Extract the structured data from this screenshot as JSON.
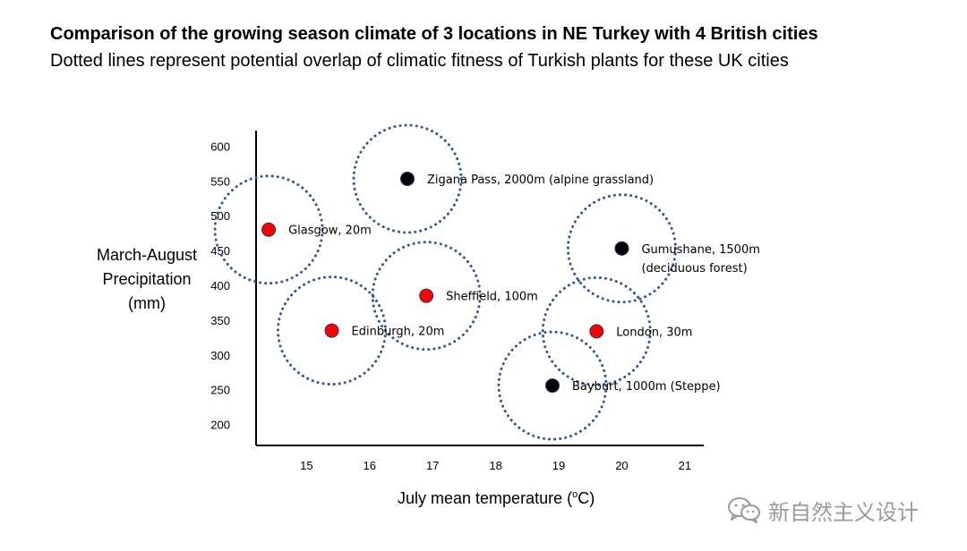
{
  "title": "Comparison of the growing season climate of 3 locations in NE Turkey with 4 British cities",
  "subtitle": "Dotted lines represent  potential overlap of  climatic fitness of Turkish plants for these UK cities",
  "ylabel_lines": [
    "March-August",
    "Precipitation",
    "(mm)"
  ],
  "xlabel_main": "July mean temperature (",
  "xlabel_sup": "o",
  "xlabel_tail": "C)",
  "watermark_text": "新自然主义设计",
  "colors": {
    "british": "#ff0000",
    "turkish": "#000000",
    "circle": "#2f5597",
    "axis": "#000000"
  },
  "chart_data": {
    "type": "scatter",
    "xlabel": "July mean temperature (oC)",
    "ylabel": "March-August Precipitation (mm)",
    "x_ticks": [
      15,
      16,
      17,
      18,
      19,
      20,
      21
    ],
    "y_ticks": [
      200,
      250,
      300,
      350,
      400,
      450,
      500,
      550,
      600
    ],
    "xlim": [
      14.2,
      21.3
    ],
    "ylim": [
      170,
      630
    ],
    "grid": false,
    "points": [
      {
        "label": "Zigana Pass, 2000m (alpine grassland)",
        "label_lines": [
          "Zigana Pass, 2000m (alpine grassland)"
        ],
        "x": 16.6,
        "y": 553,
        "group": "turkish"
      },
      {
        "label": "Glasgow, 20m",
        "label_lines": [
          "Glasgow, 20m"
        ],
        "x": 14.4,
        "y": 480,
        "group": "british"
      },
      {
        "label": "Gumushane, 1500m (deciduous forest)",
        "label_lines": [
          "Gumushane, 1500m",
          "(deciduous forest)"
        ],
        "x": 20.0,
        "y": 453,
        "group": "turkish"
      },
      {
        "label": "Sheffield, 100m",
        "label_lines": [
          "Sheffield, 100m"
        ],
        "x": 16.9,
        "y": 385,
        "group": "british"
      },
      {
        "label": "Edinburgh, 20m",
        "label_lines": [
          "Edinburgh, 20m"
        ],
        "x": 15.4,
        "y": 335,
        "group": "british"
      },
      {
        "label": "London, 30m",
        "label_lines": [
          "London, 30m"
        ],
        "x": 19.6,
        "y": 334,
        "group": "british"
      },
      {
        "label": "Bayburt, 1000m (Steppe)",
        "label_lines": [
          "Bayburt, 1000m (Steppe)"
        ],
        "x": 18.9,
        "y": 256,
        "group": "turkish"
      }
    ]
  }
}
